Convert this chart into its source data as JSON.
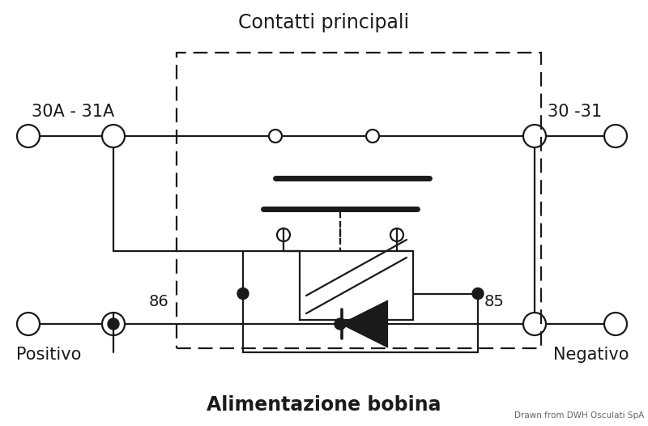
{
  "title_top": "Contatti principali",
  "title_bottom": "Alimentazione bobina",
  "label_left_top": "30A - 31A",
  "label_right_top": "30 -31",
  "label_left_bottom_num": "86",
  "label_right_bottom_num": "85",
  "label_left_bottom": "Positivo",
  "label_right_bottom": "Negativo",
  "watermark": "Drawn from DWH Osculati SpA",
  "bg_color": "#ffffff",
  "line_color": "#1a1a1a",
  "lw": 1.6,
  "lw_thick": 5.0
}
